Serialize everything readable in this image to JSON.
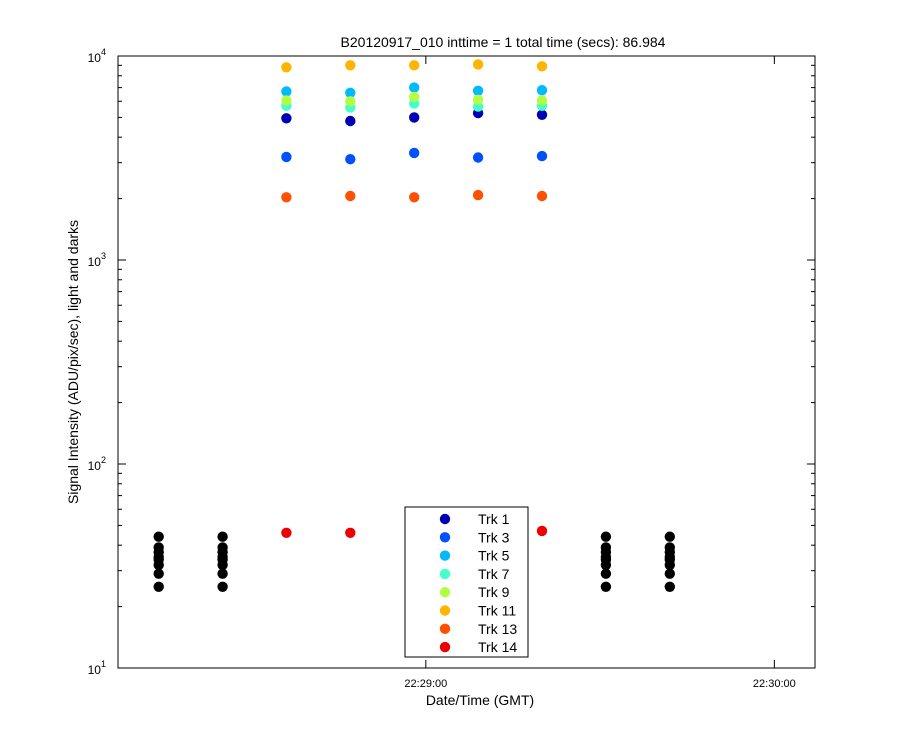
{
  "chart_data": {
    "type": "scatter",
    "title": "B20120917_010 inttime = 1 total time (secs): 86.984",
    "xlabel": "Date/Time (GMT)",
    "ylabel": "Signal Intensity (ADU/pix/sec), light and darks",
    "yscale": "log",
    "ylim": [
      10,
      10000
    ],
    "xlim": [
      "22:28:07",
      "22:30:07"
    ],
    "x_ticks": [
      {
        "t": "22:29:00",
        "label": "22:29:00"
      },
      {
        "t": "22:30:00",
        "label": "22:30:00"
      }
    ],
    "y_ticks": [
      {
        "value": 10,
        "base": "10",
        "exp": "1"
      },
      {
        "value": 100,
        "base": "10",
        "exp": "2"
      },
      {
        "value": 1000,
        "base": "10",
        "exp": "3"
      },
      {
        "value": 10000,
        "base": "10",
        "exp": "4"
      }
    ],
    "grid": false,
    "legend_position": "bottom-center",
    "light_times": [
      "22:28:36",
      "22:28:47",
      "22:28:58",
      "22:29:09",
      "22:29:20"
    ],
    "series": [
      {
        "name": "Trk 1",
        "color": "#0000b3",
        "values": [
          4950,
          4800,
          5000,
          5250,
          5150
        ]
      },
      {
        "name": "Trk 3",
        "color": "#0050ff",
        "values": [
          3200,
          3120,
          3350,
          3180,
          3230
        ]
      },
      {
        "name": "Trk 5",
        "color": "#00b9ff",
        "values": [
          6700,
          6600,
          7000,
          6750,
          6800
        ]
      },
      {
        "name": "Trk 7",
        "color": "#44ffcc",
        "values": [
          5700,
          5600,
          5850,
          5650,
          5700
        ]
      },
      {
        "name": "Trk 9",
        "color": "#b0ff45",
        "values": [
          6050,
          6000,
          6300,
          6100,
          6050
        ]
      },
      {
        "name": "Trk 11",
        "color": "#ffb400",
        "values": [
          8800,
          9000,
          9000,
          9100,
          8900
        ]
      },
      {
        "name": "Trk 13",
        "color": "#ff4f00",
        "values": [
          2030,
          2060,
          2030,
          2080,
          2060
        ]
      },
      {
        "name": "Trk 14",
        "color": "#ee0000",
        "values": [
          46,
          46,
          null,
          null,
          47
        ]
      }
    ],
    "darks": {
      "color": "#000000",
      "times": [
        "22:28:14",
        "22:28:25",
        "22:29:31",
        "22:29:42"
      ],
      "values": [
        25,
        29,
        32,
        34,
        35,
        37,
        39,
        44
      ]
    }
  }
}
